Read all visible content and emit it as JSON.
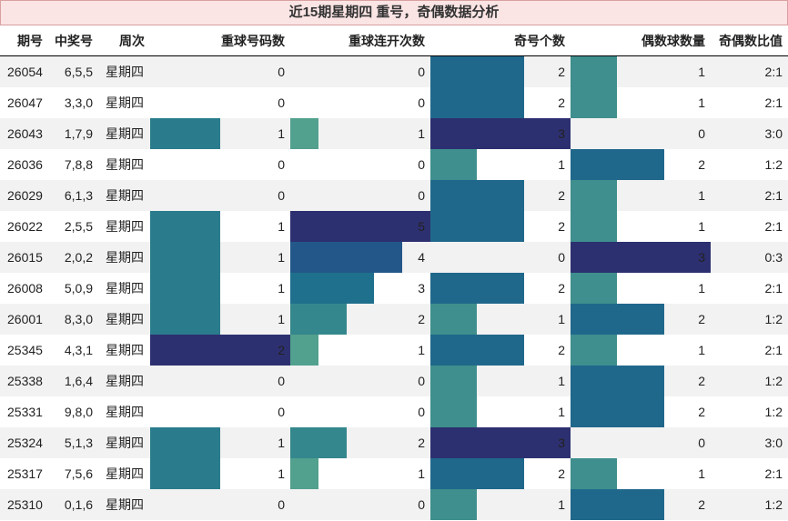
{
  "title": "近15期星期四 重号，奇偶数据分析",
  "table": {
    "columns": [
      "期号",
      "中奖号",
      "周次",
      "重球号码数",
      "重球连开次数",
      "奇号个数",
      "偶数球数量",
      "奇偶数比值"
    ],
    "rows": [
      [
        "26054",
        "6,5,5",
        "星期四",
        0,
        0,
        2,
        1,
        "2:1"
      ],
      [
        "26047",
        "3,3,0",
        "星期四",
        0,
        0,
        2,
        1,
        "2:1"
      ],
      [
        "26043",
        "1,7,9",
        "星期四",
        1,
        1,
        3,
        0,
        "3:0"
      ],
      [
        "26036",
        "7,8,8",
        "星期四",
        0,
        0,
        1,
        2,
        "1:2"
      ],
      [
        "26029",
        "6,1,3",
        "星期四",
        0,
        0,
        2,
        1,
        "2:1"
      ],
      [
        "26022",
        "2,5,5",
        "星期四",
        1,
        5,
        2,
        1,
        "2:1"
      ],
      [
        "26015",
        "2,0,2",
        "星期四",
        1,
        4,
        0,
        3,
        "0:3"
      ],
      [
        "26008",
        "5,0,9",
        "星期四",
        1,
        3,
        2,
        1,
        "2:1"
      ],
      [
        "26001",
        "8,3,0",
        "星期四",
        1,
        2,
        1,
        2,
        "1:2"
      ],
      [
        "25345",
        "4,3,1",
        "星期四",
        2,
        1,
        2,
        1,
        "2:1"
      ],
      [
        "25338",
        "1,6,4",
        "星期四",
        0,
        0,
        1,
        2,
        "1:2"
      ],
      [
        "25331",
        "9,8,0",
        "星期四",
        0,
        0,
        1,
        2,
        "1:2"
      ],
      [
        "25324",
        "5,1,3",
        "星期四",
        1,
        2,
        3,
        0,
        "3:0"
      ],
      [
        "25317",
        "7,5,6",
        "星期四",
        1,
        1,
        2,
        1,
        "2:1"
      ],
      [
        "25310",
        "0,1,6",
        "星期四",
        0,
        0,
        1,
        2,
        "1:2"
      ]
    ]
  }
}
